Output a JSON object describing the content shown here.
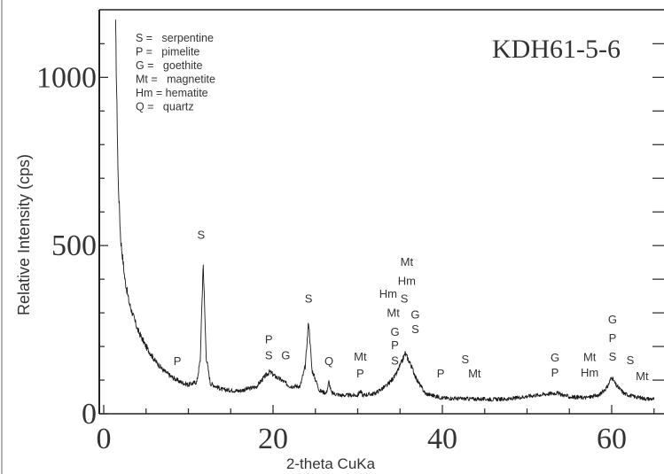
{
  "chart_data": {
    "type": "line",
    "title": "",
    "sample_label": "KDH61-5-6",
    "xlabel": "2-theta CuKa",
    "ylabel": "Relative Intensity (cps)",
    "xlim": [
      0,
      65
    ],
    "ylim": [
      0,
      1180
    ],
    "x_ticks": [
      0,
      20,
      40,
      60
    ],
    "y_ticks": [
      0,
      500,
      1000
    ],
    "legend": [
      "S =   serpentine",
      "P =   pimelite",
      "G =   goethite",
      "Mt =   magnetite",
      "Hm = hematite",
      "Q =   quartz"
    ],
    "profile": [
      [
        1.4,
        1150
      ],
      [
        1.7,
        700
      ],
      [
        2,
        520
      ],
      [
        2.5,
        400
      ],
      [
        3,
        330
      ],
      [
        4,
        250
      ],
      [
        5,
        200
      ],
      [
        6,
        160
      ],
      [
        7,
        130
      ],
      [
        8,
        110
      ],
      [
        9,
        95
      ],
      [
        10,
        86
      ],
      [
        11,
        95
      ],
      [
        11.4,
        160
      ],
      [
        11.75,
        450
      ],
      [
        12.1,
        170
      ],
      [
        12.6,
        90
      ],
      [
        14,
        72
      ],
      [
        16,
        68
      ],
      [
        18,
        80
      ],
      [
        19,
        110
      ],
      [
        19.6,
        125
      ],
      [
        20.2,
        112
      ],
      [
        21,
        100
      ],
      [
        22,
        82
      ],
      [
        23.2,
        82
      ],
      [
        23.8,
        140
      ],
      [
        24.2,
        275
      ],
      [
        24.6,
        130
      ],
      [
        25.5,
        68
      ],
      [
        26.3,
        62
      ],
      [
        26.6,
        95
      ],
      [
        26.9,
        62
      ],
      [
        28,
        55
      ],
      [
        29,
        55
      ],
      [
        30,
        55
      ],
      [
        30.3,
        68
      ],
      [
        30.6,
        55
      ],
      [
        32,
        60
      ],
      [
        33.5,
        85
      ],
      [
        34.5,
        115
      ],
      [
        35.3,
        160
      ],
      [
        35.6,
        180
      ],
      [
        36.2,
        150
      ],
      [
        37,
        100
      ],
      [
        38,
        60
      ],
      [
        40,
        47
      ],
      [
        42,
        45
      ],
      [
        44,
        44
      ],
      [
        46,
        43
      ],
      [
        48,
        44
      ],
      [
        50,
        52
      ],
      [
        52,
        58
      ],
      [
        53.5,
        62
      ],
      [
        55,
        50
      ],
      [
        57,
        48
      ],
      [
        58.5,
        55
      ],
      [
        59.5,
        80
      ],
      [
        60,
        110
      ],
      [
        60.5,
        85
      ],
      [
        61.5,
        60
      ],
      [
        62.5,
        52
      ],
      [
        64,
        45
      ],
      [
        65,
        44
      ]
    ],
    "annotations": [
      {
        "x": 11.5,
        "y": 520,
        "text": "S"
      },
      {
        "x": 8.7,
        "y": 145,
        "text": "P"
      },
      {
        "x": 19.5,
        "y": 210,
        "text": "P"
      },
      {
        "x": 19.5,
        "y": 162,
        "text": "S"
      },
      {
        "x": 21.5,
        "y": 162,
        "text": "G"
      },
      {
        "x": 24.2,
        "y": 330,
        "text": "S"
      },
      {
        "x": 26.6,
        "y": 145,
        "text": "Q"
      },
      {
        "x": 30.3,
        "y": 158,
        "text": "Mt"
      },
      {
        "x": 30.3,
        "y": 108,
        "text": "P"
      },
      {
        "x": 33.6,
        "y": 345,
        "text": "Hm"
      },
      {
        "x": 34.2,
        "y": 288,
        "text": "Mt"
      },
      {
        "x": 34.4,
        "y": 232,
        "text": "G"
      },
      {
        "x": 34.4,
        "y": 192,
        "text": "P"
      },
      {
        "x": 34.4,
        "y": 146,
        "text": "S"
      },
      {
        "x": 35.8,
        "y": 440,
        "text": "Mt"
      },
      {
        "x": 35.8,
        "y": 383,
        "text": "Hm"
      },
      {
        "x": 35.5,
        "y": 330,
        "text": "S"
      },
      {
        "x": 36.8,
        "y": 283,
        "text": "G"
      },
      {
        "x": 36.8,
        "y": 240,
        "text": "S"
      },
      {
        "x": 39.8,
        "y": 108,
        "text": "P"
      },
      {
        "x": 42.7,
        "y": 150,
        "text": "S"
      },
      {
        "x": 43.8,
        "y": 108,
        "text": "Mt"
      },
      {
        "x": 53.3,
        "y": 155,
        "text": "G"
      },
      {
        "x": 53.3,
        "y": 110,
        "text": "P"
      },
      {
        "x": 57.4,
        "y": 157,
        "text": "Mt"
      },
      {
        "x": 57.4,
        "y": 110,
        "text": "Hm"
      },
      {
        "x": 60.1,
        "y": 268,
        "text": "G"
      },
      {
        "x": 60.1,
        "y": 213,
        "text": "P"
      },
      {
        "x": 60.1,
        "y": 158,
        "text": "S"
      },
      {
        "x": 62.2,
        "y": 148,
        "text": "S"
      },
      {
        "x": 63.6,
        "y": 100,
        "text": "Mt"
      }
    ]
  }
}
